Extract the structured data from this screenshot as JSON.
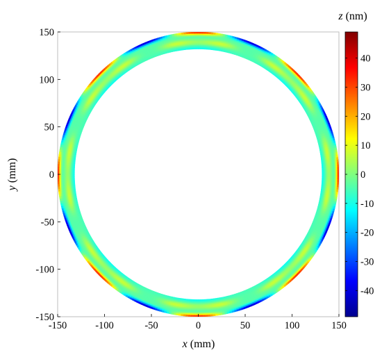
{
  "chart_data": {
    "type": "heatmap",
    "description_kind": "annular surface map",
    "xlabel_var": "x",
    "xlabel_unit": "(mm)",
    "ylabel_var": "y",
    "ylabel_unit": "(mm)",
    "colorbar_var": "z",
    "colorbar_unit": "(nm)",
    "xlim": [
      -150,
      150
    ],
    "ylim": [
      -150,
      150
    ],
    "x_ticks": [
      "-150",
      "-100",
      "-50",
      "0",
      "50",
      "100",
      "150"
    ],
    "y_ticks": [
      "150",
      "100",
      "50",
      "0",
      "-50",
      "-100",
      "-150"
    ],
    "colorbar_range": [
      -49,
      49
    ],
    "colorbar_ticks": [
      "40",
      "30",
      "20",
      "10",
      "0",
      "-10",
      "-20",
      "-30",
      "-40"
    ],
    "colormap": "jet",
    "ring_outer_radius_mm": 150,
    "ring_inner_radius_mm": 132,
    "angular_order": 8,
    "peak_angles_deg": [
      0,
      45,
      90,
      135,
      180,
      225,
      270,
      315
    ],
    "peak_value_outer_edge": 45,
    "trough_value_outer_edge": -45
  }
}
